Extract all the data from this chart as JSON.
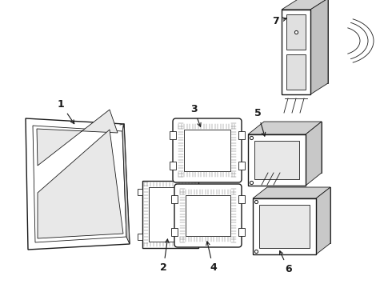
{
  "bg_color": "#ffffff",
  "line_color": "#1a1a1a",
  "fig_width": 4.9,
  "fig_height": 3.6,
  "dpi": 100,
  "label_fontsize": 9
}
